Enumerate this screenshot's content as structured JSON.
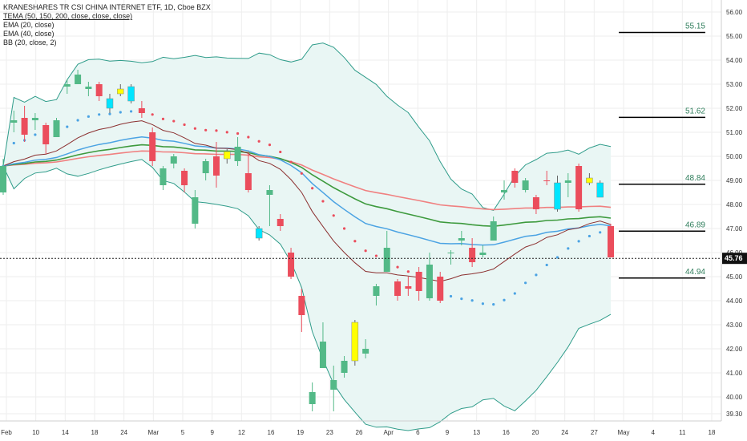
{
  "legend": {
    "title": "KRANESHARES TR CSI CHINA INTERNET ETF, 1D, Cboe BZX",
    "tema": "TEMA (50, 150, 200, close, close, close)",
    "ema20": "EMA (20, close)",
    "ema40": "EMA (40, close)",
    "bb": "BB (20, close, 2)"
  },
  "colors": {
    "up": "#53b987",
    "down": "#eb4d5c",
    "yellow": "#ffff00",
    "cyan": "#00e5ff",
    "bb_band": "#2f9c8a",
    "bb_fill": "#e9f6f4",
    "ema20": "#8b2f2f",
    "ema40": "#4ba3e3",
    "tema_green": "#3d9a3d",
    "tema_red": "#f08080",
    "grid": "#eeeeee"
  },
  "chart_data": {
    "type": "candlestick",
    "y_axis_ticks": [
      "56.00",
      "55.00",
      "54.00",
      "53.00",
      "52.00",
      "51.00",
      "50.00",
      "49.00",
      "48.00",
      "47.00",
      "46.00",
      "45.00",
      "44.00",
      "43.00",
      "42.00",
      "41.00",
      "40.00",
      "39.30"
    ],
    "ylim": [
      39.0,
      56.5
    ],
    "x_axis_labels": [
      "Feb",
      "10",
      "14",
      "18",
      "24",
      "Mar",
      "5",
      "9",
      "12",
      "16",
      "19",
      "23",
      "26",
      "Apr",
      "6",
      "9",
      "13",
      "16",
      "20",
      "24",
      "27",
      "May",
      "4",
      "11",
      "18"
    ],
    "current_price": "45.76",
    "levels": [
      {
        "value": 55.15,
        "label": "55.15"
      },
      {
        "value": 51.62,
        "label": "51.62"
      },
      {
        "value": 48.84,
        "label": "48.84"
      },
      {
        "value": 46.89,
        "label": "46.89"
      },
      {
        "value": 44.94,
        "label": "44.94"
      }
    ],
    "candles": [
      {
        "o": 48.5,
        "h": 49.9,
        "l": 48.4,
        "c": 49.6,
        "col": "up"
      },
      {
        "o": 51.4,
        "h": 51.9,
        "l": 51.0,
        "c": 51.5,
        "col": "up"
      },
      {
        "o": 51.6,
        "h": 52.1,
        "l": 50.6,
        "c": 50.9,
        "col": "down"
      },
      {
        "o": 51.5,
        "h": 51.8,
        "l": 51.1,
        "c": 51.6,
        "col": "up"
      },
      {
        "o": 51.3,
        "h": 51.4,
        "l": 50.1,
        "c": 50.5,
        "col": "down"
      },
      {
        "o": 50.8,
        "h": 51.6,
        "l": 50.8,
        "c": 51.5,
        "col": "up"
      },
      {
        "o": 52.9,
        "h": 53.2,
        "l": 52.6,
        "c": 53.0,
        "col": "up"
      },
      {
        "o": 53.0,
        "h": 53.6,
        "l": 53.0,
        "c": 53.4,
        "col": "up"
      },
      {
        "o": 52.8,
        "h": 53.1,
        "l": 52.5,
        "c": 52.9,
        "col": "up"
      },
      {
        "o": 53.0,
        "h": 53.1,
        "l": 52.3,
        "c": 52.5,
        "col": "down"
      },
      {
        "o": 52.4,
        "h": 52.6,
        "l": 51.8,
        "c": 52.0,
        "col": "cyan"
      },
      {
        "o": 52.8,
        "h": 53.0,
        "l": 52.5,
        "c": 52.6,
        "col": "yellow"
      },
      {
        "o": 52.9,
        "h": 53.0,
        "l": 52.2,
        "c": 52.3,
        "col": "cyan"
      },
      {
        "o": 51.8,
        "h": 52.3,
        "l": 51.6,
        "c": 52.0,
        "col": "down"
      },
      {
        "o": 51.0,
        "h": 51.2,
        "l": 49.6,
        "c": 49.8,
        "col": "down"
      },
      {
        "o": 49.5,
        "h": 49.6,
        "l": 48.6,
        "c": 48.8,
        "col": "up"
      },
      {
        "o": 49.7,
        "h": 50.1,
        "l": 49.5,
        "c": 50.0,
        "col": "up"
      },
      {
        "o": 49.4,
        "h": 49.5,
        "l": 48.5,
        "c": 48.8,
        "col": "down"
      },
      {
        "o": 47.2,
        "h": 48.6,
        "l": 47.0,
        "c": 48.3,
        "col": "up"
      },
      {
        "o": 49.3,
        "h": 49.9,
        "l": 49.0,
        "c": 49.8,
        "col": "up"
      },
      {
        "o": 50.0,
        "h": 50.6,
        "l": 48.7,
        "c": 49.2,
        "col": "down"
      },
      {
        "o": 49.9,
        "h": 50.3,
        "l": 49.7,
        "c": 50.2,
        "col": "yellow"
      },
      {
        "o": 50.4,
        "h": 50.8,
        "l": 49.6,
        "c": 49.8,
        "col": "up"
      },
      {
        "o": 49.3,
        "h": 50.2,
        "l": 48.5,
        "c": 48.6,
        "col": "down"
      },
      {
        "o": 46.6,
        "h": 47.1,
        "l": 46.5,
        "c": 47.0,
        "col": "cyan"
      },
      {
        "o": 48.4,
        "h": 48.8,
        "l": 47.1,
        "c": 48.6,
        "col": "up"
      },
      {
        "o": 47.4,
        "h": 47.6,
        "l": 46.9,
        "c": 47.1,
        "col": "down"
      },
      {
        "o": 46.0,
        "h": 46.2,
        "l": 44.9,
        "c": 45.0,
        "col": "down"
      },
      {
        "o": 44.2,
        "h": 44.5,
        "l": 42.7,
        "c": 43.4,
        "col": "down"
      },
      {
        "o": 39.7,
        "h": 40.6,
        "l": 39.4,
        "c": 40.2,
        "col": "up"
      },
      {
        "o": 42.3,
        "h": 43.1,
        "l": 41.2,
        "c": 41.2,
        "col": "up"
      },
      {
        "o": 40.3,
        "h": 41.3,
        "l": 39.4,
        "c": 40.7,
        "col": "up"
      },
      {
        "o": 41.0,
        "h": 41.7,
        "l": 40.8,
        "c": 41.5,
        "col": "up"
      },
      {
        "o": 43.1,
        "h": 43.2,
        "l": 41.3,
        "c": 41.5,
        "col": "yellow"
      },
      {
        "o": 42.0,
        "h": 42.4,
        "l": 41.6,
        "c": 41.8,
        "col": "up"
      },
      {
        "o": 44.2,
        "h": 44.7,
        "l": 43.8,
        "c": 44.6,
        "col": "up"
      },
      {
        "o": 46.2,
        "h": 46.9,
        "l": 45.2,
        "c": 45.2,
        "col": "up"
      },
      {
        "o": 44.8,
        "h": 44.9,
        "l": 44.0,
        "c": 44.2,
        "col": "down"
      },
      {
        "o": 44.5,
        "h": 45.0,
        "l": 44.2,
        "c": 44.6,
        "col": "down"
      },
      {
        "o": 45.2,
        "h": 45.4,
        "l": 44.0,
        "c": 44.4,
        "col": "down"
      },
      {
        "o": 45.5,
        "h": 46.0,
        "l": 44.0,
        "c": 44.1,
        "col": "up"
      },
      {
        "o": 45.0,
        "h": 45.2,
        "l": 43.9,
        "c": 44.0,
        "col": "down"
      },
      {
        "o": 46.0,
        "h": 46.1,
        "l": 45.5,
        "c": 46.0,
        "col": "up"
      },
      {
        "o": 46.6,
        "h": 46.9,
        "l": 46.3,
        "c": 46.5,
        "col": "up"
      },
      {
        "o": 46.2,
        "h": 46.6,
        "l": 45.4,
        "c": 45.6,
        "col": "down"
      },
      {
        "o": 46.0,
        "h": 46.3,
        "l": 45.8,
        "c": 45.9,
        "col": "up"
      },
      {
        "o": 47.3,
        "h": 47.5,
        "l": 46.5,
        "c": 46.5,
        "col": "up"
      },
      {
        "o": 48.5,
        "h": 49.0,
        "l": 48.2,
        "c": 48.6,
        "col": "up"
      },
      {
        "o": 49.4,
        "h": 49.5,
        "l": 48.7,
        "c": 48.9,
        "col": "down"
      },
      {
        "o": 48.6,
        "h": 49.1,
        "l": 48.5,
        "c": 49.0,
        "col": "up"
      },
      {
        "o": 48.3,
        "h": 48.4,
        "l": 47.6,
        "c": 47.8,
        "col": "down"
      },
      {
        "o": 49.0,
        "h": 49.4,
        "l": 48.8,
        "c": 49.0,
        "col": "down"
      },
      {
        "o": 48.9,
        "h": 49.2,
        "l": 47.7,
        "c": 47.8,
        "col": "cyan"
      },
      {
        "o": 49.0,
        "h": 49.3,
        "l": 48.3,
        "c": 48.9,
        "col": "up"
      },
      {
        "o": 49.6,
        "h": 49.7,
        "l": 47.7,
        "c": 47.8,
        "col": "down"
      },
      {
        "o": 49.1,
        "h": 49.3,
        "l": 48.8,
        "c": 48.9,
        "col": "yellow"
      },
      {
        "o": 48.9,
        "h": 49.0,
        "l": 48.3,
        "c": 48.3,
        "col": "cyan"
      },
      {
        "o": 47.1,
        "h": 47.2,
        "l": 45.8,
        "c": 45.8,
        "col": "down"
      }
    ]
  }
}
